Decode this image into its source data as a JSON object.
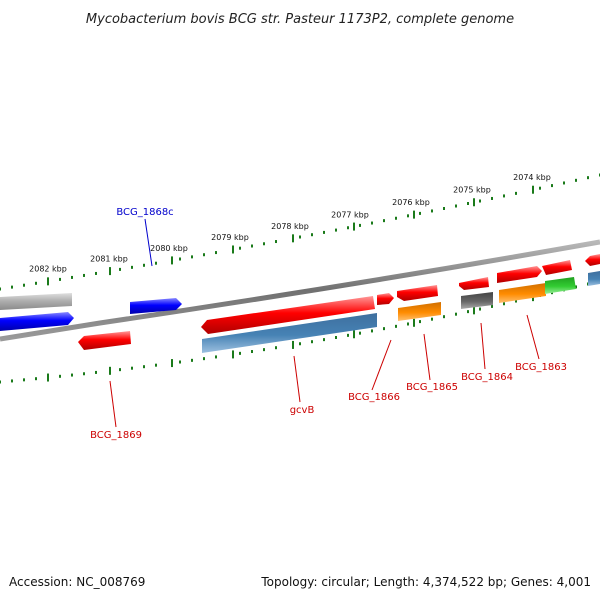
{
  "title": "Mycobacterium bovis BCG str. Pasteur 1173P2, complete genome",
  "footer": {
    "accession": "Accession: NC_008769",
    "summary": "Topology: circular; Length: 4,374,522 bp; Genes: 4,001"
  },
  "ruler": {
    "labels": [
      "2082 kbp",
      "2081 kbp",
      "2080 kbp",
      "2079 kbp",
      "2078 kbp",
      "2077 kbp",
      "2076 kbp",
      "2075 kbp",
      "2074 kbp"
    ],
    "tick_color": "#1a7a1a"
  },
  "backbone_color": "#808080",
  "gene_labels": [
    {
      "name": "BCG_1868c",
      "color": "#0000cc"
    },
    {
      "name": "BCG_1869",
      "color": "#cc0000"
    },
    {
      "name": "gcvB",
      "color": "#cc0000"
    },
    {
      "name": "BCG_1866",
      "color": "#cc0000"
    },
    {
      "name": "BCG_1865",
      "color": "#cc0000"
    },
    {
      "name": "BCG_1864",
      "color": "#cc0000"
    },
    {
      "name": "BCG_1863",
      "color": "#cc0000"
    }
  ],
  "feature_colors": {
    "red": "#ff0000",
    "blue": "#0000ff",
    "steelblue": "#4682b4",
    "orange": "#ff8c00",
    "green": "#33cc33",
    "gray": "#666666",
    "lightgray": "#b0b0b0"
  }
}
